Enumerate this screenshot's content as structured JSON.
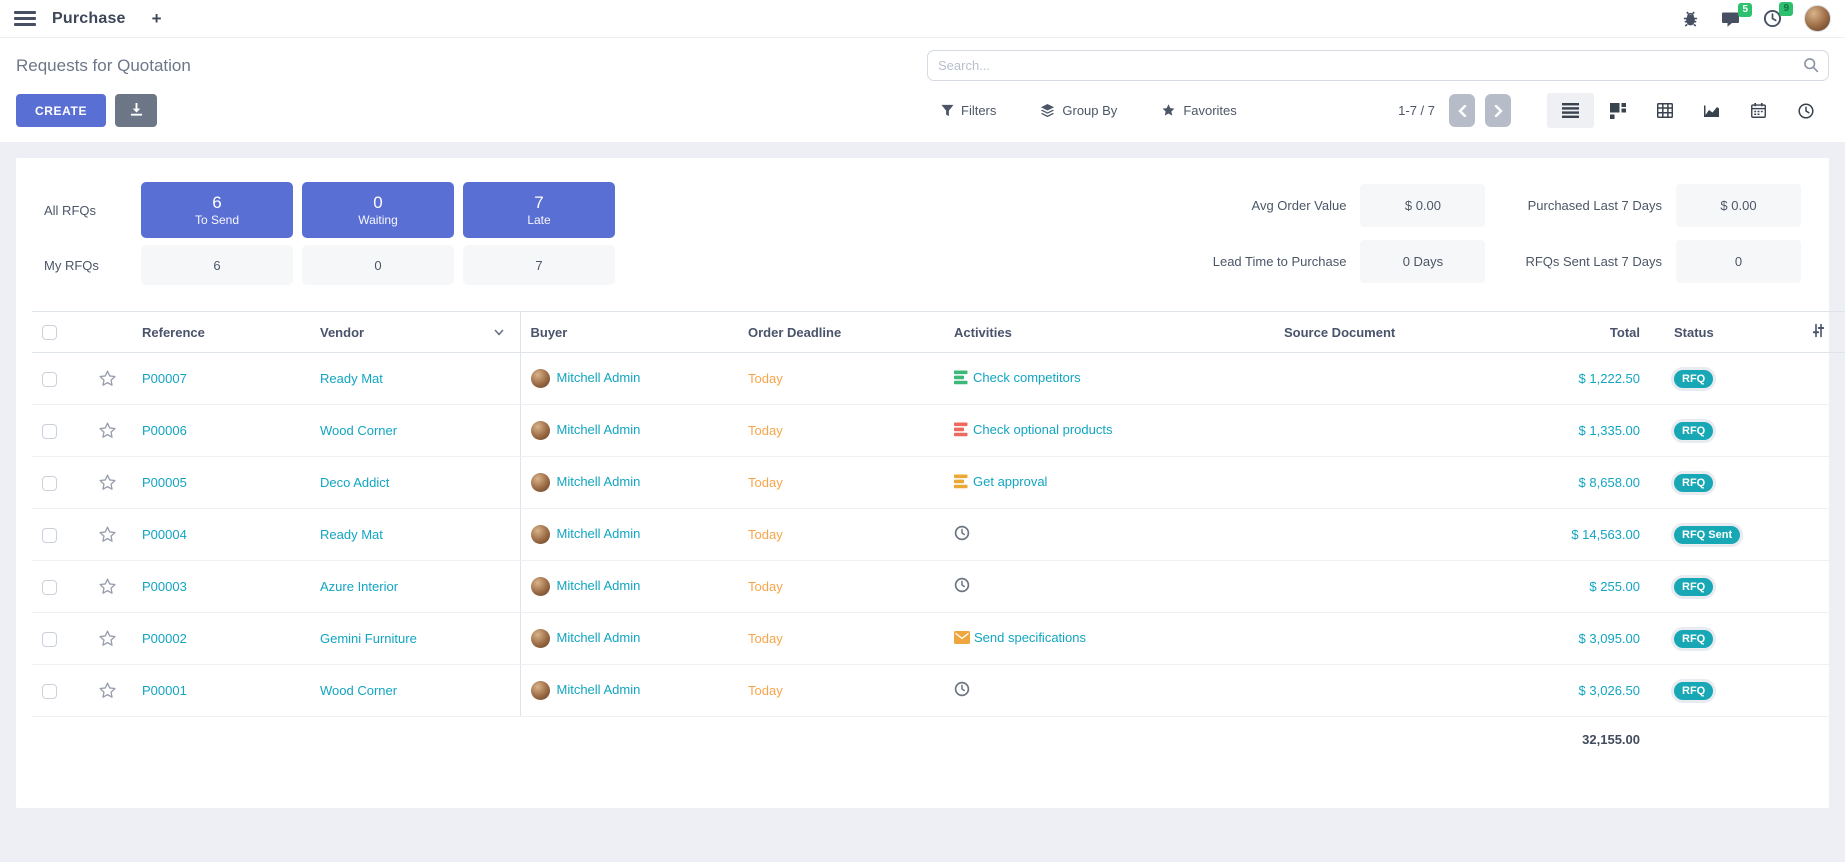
{
  "navbar": {
    "app_title": "Purchase",
    "new_tab_label": "+",
    "messages_badge": "5",
    "activities_badge": "9"
  },
  "control_panel": {
    "page_title": "Requests for Quotation",
    "create_label": "CREATE",
    "search_placeholder": "Search...",
    "filters_label": "Filters",
    "group_by_label": "Group By",
    "favorites_label": "Favorites",
    "pager": "1-7 / 7",
    "view_switcher": [
      "list",
      "kanban",
      "pivot",
      "graph",
      "calendar",
      "activity"
    ],
    "active_view": "list"
  },
  "dashboard": {
    "all_rfqs_label": "All RFQs",
    "my_rfqs_label": "My RFQs",
    "all_tiles": [
      {
        "value": "6",
        "label": "To Send"
      },
      {
        "value": "0",
        "label": "Waiting"
      },
      {
        "value": "7",
        "label": "Late"
      }
    ],
    "my_tiles": [
      "6",
      "0",
      "7"
    ],
    "kpis": [
      {
        "label": "Avg Order Value",
        "value": "$ 0.00"
      },
      {
        "label": "Purchased Last 7 Days",
        "value": "$ 0.00"
      },
      {
        "label": "Lead Time to Purchase",
        "value": "0 Days"
      },
      {
        "label": "RFQs Sent Last 7 Days",
        "value": "0"
      }
    ]
  },
  "table": {
    "columns": {
      "reference": "Reference",
      "vendor": "Vendor",
      "buyer": "Buyer",
      "order_deadline": "Order Deadline",
      "activities": "Activities",
      "source_document": "Source Document",
      "total": "Total",
      "status": "Status"
    },
    "rows": [
      {
        "reference": "P00007",
        "vendor": "Ready Mat",
        "buyer": "Mitchell Admin",
        "order_deadline": "Today",
        "activity": {
          "icon": "list-icon",
          "color": "#3cb878",
          "label": "Check competitors"
        },
        "source_document": "",
        "total": "$ 1,222.50",
        "status": "RFQ"
      },
      {
        "reference": "P00006",
        "vendor": "Wood Corner",
        "buyer": "Mitchell Admin",
        "order_deadline": "Today",
        "activity": {
          "icon": "list-icon",
          "color": "#ee6a5f",
          "label": "Check optional products"
        },
        "source_document": "",
        "total": "$ 1,335.00",
        "status": "RFQ"
      },
      {
        "reference": "P00005",
        "vendor": "Deco Addict",
        "buyer": "Mitchell Admin",
        "order_deadline": "Today",
        "activity": {
          "icon": "list-icon",
          "color": "#eaa836",
          "label": "Get approval"
        },
        "source_document": "",
        "total": "$ 8,658.00",
        "status": "RFQ"
      },
      {
        "reference": "P00004",
        "vendor": "Ready Mat",
        "buyer": "Mitchell Admin",
        "order_deadline": "Today",
        "activity": {
          "icon": "clock-icon",
          "color": "#6e7582",
          "label": ""
        },
        "source_document": "",
        "total": "$ 14,563.00",
        "status": "RFQ Sent"
      },
      {
        "reference": "P00003",
        "vendor": "Azure Interior",
        "buyer": "Mitchell Admin",
        "order_deadline": "Today",
        "activity": {
          "icon": "clock-icon",
          "color": "#6e7582",
          "label": ""
        },
        "source_document": "",
        "total": "$ 255.00",
        "status": "RFQ"
      },
      {
        "reference": "P00002",
        "vendor": "Gemini Furniture",
        "buyer": "Mitchell Admin",
        "order_deadline": "Today",
        "activity": {
          "icon": "envelope-icon",
          "color": "#f0a63e",
          "label": "Send specifications"
        },
        "source_document": "",
        "total": "$ 3,095.00",
        "status": "RFQ"
      },
      {
        "reference": "P00001",
        "vendor": "Wood Corner",
        "buyer": "Mitchell Admin",
        "order_deadline": "Today",
        "activity": {
          "icon": "clock-icon",
          "color": "#6e7582",
          "label": ""
        },
        "source_document": "",
        "total": "$ 3,026.50",
        "status": "RFQ"
      }
    ],
    "footer_total": "32,155.00"
  },
  "colors": {
    "accent_blue": "#5a6fd4",
    "link_teal": "#12a5c2",
    "badge_teal": "#18a7b5",
    "deadline_orange": "#f7a54a",
    "notification_green": "#2ec06f",
    "activity_green": "#3cb878",
    "activity_red": "#ee6a5f",
    "activity_yellow": "#eaa836",
    "activity_envelope_orange": "#f0a63e"
  }
}
